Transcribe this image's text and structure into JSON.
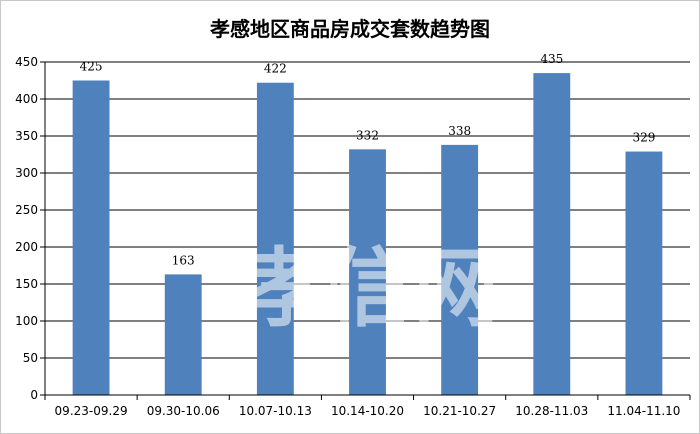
{
  "chart_data": {
    "type": "bar",
    "title": "孝感地区商品房成交套数趋势图",
    "categories": [
      "09.23-09.29",
      "09.30-10.06",
      "10.07-10.13",
      "10.14-10.20",
      "10.21-10.27",
      "10.28-11.03",
      "11.04-11.10"
    ],
    "values": [
      425,
      163,
      422,
      332,
      338,
      435,
      329
    ],
    "ylim": [
      0,
      450
    ],
    "yticks": [
      0,
      50,
      100,
      150,
      200,
      250,
      300,
      350,
      400,
      450
    ],
    "grid": true,
    "legend": "none",
    "bar_color": "#4f81bd"
  },
  "watermark": "孝信网"
}
